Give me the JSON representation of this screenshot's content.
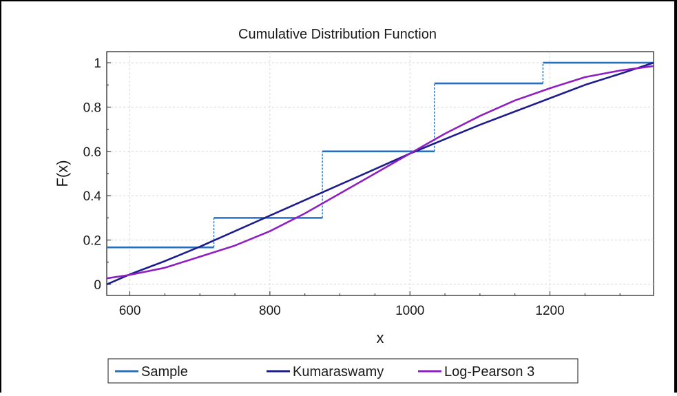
{
  "chart_data": {
    "type": "line",
    "title": "Cumulative Distribution Function",
    "xlabel": "x",
    "ylabel": "F(x)",
    "xlim": [
      567,
      1348
    ],
    "ylim": [
      -0.05,
      1.05
    ],
    "xticks": [
      600,
      800,
      1000,
      1200
    ],
    "yticks": [
      0,
      0.2,
      0.4,
      0.6,
      0.8,
      1
    ],
    "xtick_labels": [
      "600",
      "800",
      "1000",
      "1200"
    ],
    "ytick_labels": [
      "0",
      "0.2",
      "0.4",
      "0.6",
      "0.8",
      "1"
    ],
    "grid": true,
    "legend_position": "bottom",
    "series": [
      {
        "name": "Sample",
        "kind": "step",
        "color": "#2a6ebb",
        "x": [
          567,
          720,
          875,
          1035,
          1190,
          1348
        ],
        "y": [
          0.167,
          0.3,
          0.6,
          0.907,
          1.0,
          1.0
        ]
      },
      {
        "name": "Kumaraswamy",
        "kind": "line",
        "color": "#1c1c8c",
        "x": [
          567,
          600,
          650,
          700,
          750,
          800,
          850,
          900,
          950,
          1000,
          1050,
          1100,
          1150,
          1200,
          1250,
          1300,
          1348
        ],
        "y": [
          0.0,
          0.045,
          0.105,
          0.17,
          0.24,
          0.31,
          0.38,
          0.45,
          0.52,
          0.59,
          0.655,
          0.72,
          0.78,
          0.84,
          0.9,
          0.95,
          1.0
        ]
      },
      {
        "name": "Log-Pearson 3",
        "kind": "line",
        "color": "#8e1fc0",
        "x": [
          567,
          600,
          650,
          700,
          750,
          800,
          850,
          900,
          950,
          1000,
          1050,
          1100,
          1150,
          1200,
          1250,
          1300,
          1348
        ],
        "y": [
          0.027,
          0.043,
          0.075,
          0.125,
          0.175,
          0.24,
          0.32,
          0.41,
          0.5,
          0.59,
          0.68,
          0.76,
          0.83,
          0.885,
          0.935,
          0.965,
          0.985
        ]
      }
    ]
  }
}
